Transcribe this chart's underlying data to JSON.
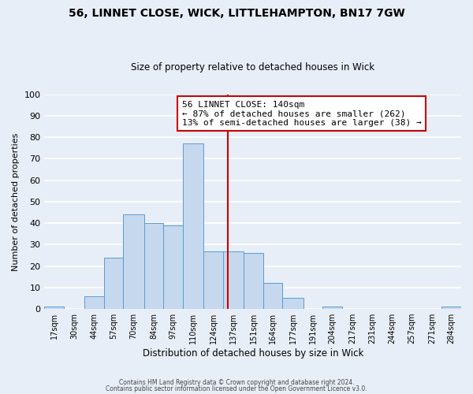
{
  "title": "56, LINNET CLOSE, WICK, LITTLEHAMPTON, BN17 7GW",
  "subtitle": "Size of property relative to detached houses in Wick",
  "xlabel": "Distribution of detached houses by size in Wick",
  "ylabel": "Number of detached properties",
  "bin_labels": [
    "17sqm",
    "30sqm",
    "44sqm",
    "57sqm",
    "70sqm",
    "84sqm",
    "97sqm",
    "110sqm",
    "124sqm",
    "137sqm",
    "151sqm",
    "164sqm",
    "177sqm",
    "191sqm",
    "204sqm",
    "217sqm",
    "231sqm",
    "244sqm",
    "257sqm",
    "271sqm",
    "284sqm"
  ],
  "bin_edges": [
    17,
    30,
    44,
    57,
    70,
    84,
    97,
    110,
    124,
    137,
    151,
    164,
    177,
    191,
    204,
    217,
    231,
    244,
    257,
    271,
    284,
    297
  ],
  "bar_heights": [
    1,
    0,
    6,
    24,
    44,
    40,
    39,
    77,
    27,
    27,
    26,
    12,
    5,
    0,
    1,
    0,
    0,
    0,
    0,
    0,
    1
  ],
  "bar_color": "#c5d8ed",
  "bar_edge_color": "#5b9bd5",
  "vline_x": 140,
  "vline_color": "#cc0000",
  "annotation_title": "56 LINNET CLOSE: 140sqm",
  "annotation_line1": "← 87% of detached houses are smaller (262)",
  "annotation_line2": "13% of semi-detached houses are larger (38) →",
  "annotation_box_color": "#cc0000",
  "ylim": [
    0,
    100
  ],
  "yticks": [
    0,
    10,
    20,
    30,
    40,
    50,
    60,
    70,
    80,
    90,
    100
  ],
  "background_color": "#e8eef7",
  "grid_color": "#ffffff",
  "footer1": "Contains HM Land Registry data © Crown copyright and database right 2024.",
  "footer2": "Contains public sector information licensed under the Open Government Licence v3.0."
}
